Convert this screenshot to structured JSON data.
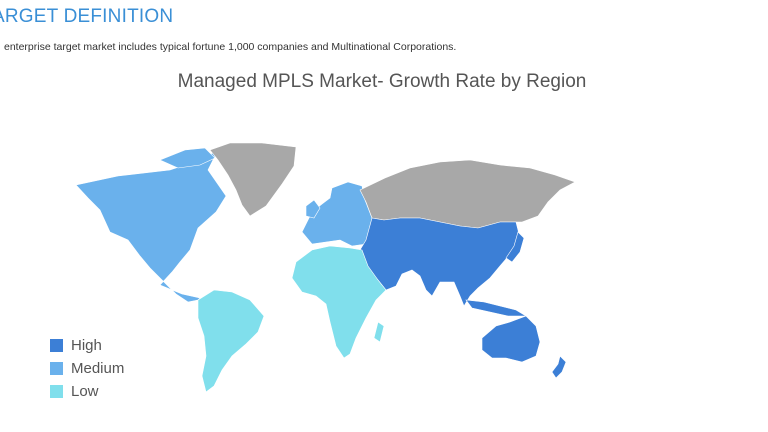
{
  "page": {
    "heading": "ARGET DEFINITION",
    "description": "enterprise target market includes typical fortune 1,000 companies and Multinational Corporations."
  },
  "map": {
    "title": "Managed MPLS Market- Growth Rate by Region",
    "colors": {
      "high": "#3c7fd6",
      "medium": "#6ab1ec",
      "low": "#80dfec",
      "no_data": "#a8a8a8"
    },
    "legend": [
      {
        "key": "high",
        "label": "High",
        "color": "#3c7fd6"
      },
      {
        "key": "medium",
        "label": "Medium",
        "color": "#6ab1ec"
      },
      {
        "key": "low",
        "label": "Low",
        "color": "#80dfec"
      }
    ],
    "regions": [
      {
        "name": "North America",
        "level": "medium"
      },
      {
        "name": "Europe",
        "level": "medium"
      },
      {
        "name": "Asia-Pacific",
        "level": "high"
      },
      {
        "name": "Middle East",
        "level": "high"
      },
      {
        "name": "Australia",
        "level": "high"
      },
      {
        "name": "New Zealand",
        "level": "high"
      },
      {
        "name": "South America",
        "level": "low"
      },
      {
        "name": "Africa",
        "level": "low"
      },
      {
        "name": "Greenland",
        "level": "no_data"
      },
      {
        "name": "Russia",
        "level": "no_data"
      }
    ]
  }
}
